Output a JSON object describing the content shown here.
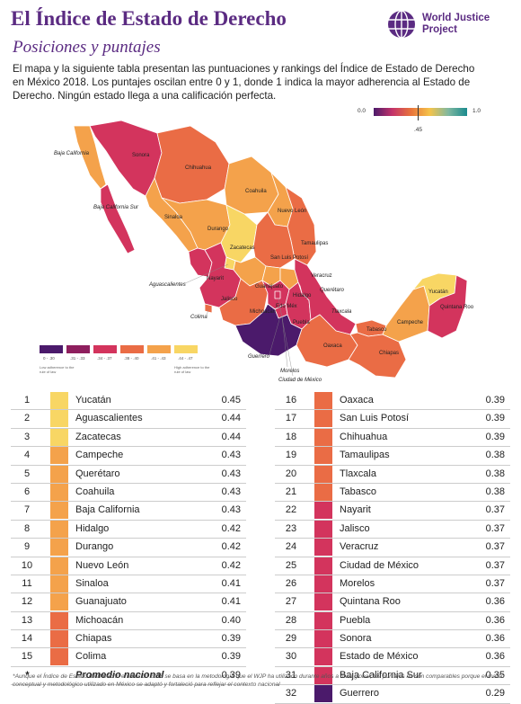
{
  "header": {
    "title": "El Índice de Estado de Derecho",
    "subtitle": "Posiciones y puntajes",
    "intro": "El mapa y la siguiente tabla presentan las puntuaciones y rankings del Índice de Estado de Derecho en México 2018. Los puntajes oscilan entre 0 y 1, donde 1 indica la mayor adherencia al Estado de Derecho. Ningún estado llega a una calificación perfecta.",
    "logo_line1": "World Justice",
    "logo_line2": "Project"
  },
  "scale": {
    "min": "0.0",
    "max": "1.0",
    "marker": ".45"
  },
  "legend": {
    "bins": [
      {
        "label": "0 - .30",
        "color": "#4b1a6b"
      },
      {
        "label": ".31 - .33",
        "color": "#8e1f5e"
      },
      {
        "label": ".34 - .37",
        "color": "#d3345d"
      },
      {
        "label": ".38 - .40",
        "color": "#ea6c45"
      },
      {
        "label": ".41 - .43",
        "color": "#f4a24b"
      },
      {
        "label": ".44 - .47",
        "color": "#f8d664"
      }
    ],
    "low_note": "Low adherence to the rule of law",
    "high_note": "High adherence to the rule of law"
  },
  "map_labels": {
    "baja_california": "Baja California",
    "baja_california_sur": "Baja California Sur",
    "sonora": "Sonora",
    "chihuahua": "Chihuahua",
    "coahuila": "Coahuila",
    "nuevo_leon": "Nuevo León",
    "sinaloa": "Sinaloa",
    "durango": "Durango",
    "tamaulipas": "Tamaulipas",
    "zacatecas": "Zacatecas",
    "san_luis_potosi": "San Luis Potosí",
    "aguascalientes": "Aguascalientes",
    "nayarit": "Nayarit",
    "jalisco": "Jalisco",
    "guanajuato": "Guanajuato",
    "queretaro": "Querétaro",
    "hidalgo": "Hidalgo",
    "veracruz": "Veracruz",
    "colima": "Colima",
    "michoacan": "Michoacán",
    "edomex": "Edo Méx",
    "puebla": "Puebla",
    "tlaxcala": "Tlaxcala",
    "guerrero": "Guerrero",
    "morelos": "Morelos",
    "cdmx": "Ciudad de México",
    "oaxaca": "Oaxaca",
    "tabasco": "Tabasco",
    "chiapas": "Chiapas",
    "campeche": "Campeche",
    "yucatan": "Yucatán",
    "quintana_roo": "Quintana Roo"
  },
  "colors": {
    "c44": "#f8d664",
    "c41": "#f4a24b",
    "c38": "#ea6c45",
    "c34": "#d3345d",
    "c31": "#8e1f5e",
    "c0": "#4b1a6b",
    "accent": "#5b2b82"
  },
  "rankings_left": [
    {
      "rank": "1",
      "state": "Yucatán",
      "score": "0.45",
      "color": "#f8d664"
    },
    {
      "rank": "2",
      "state": "Aguascalientes",
      "score": "0.44",
      "color": "#f8d664"
    },
    {
      "rank": "3",
      "state": "Zacatecas",
      "score": "0.44",
      "color": "#f8d664"
    },
    {
      "rank": "4",
      "state": "Campeche",
      "score": "0.43",
      "color": "#f4a24b"
    },
    {
      "rank": "5",
      "state": "Querétaro",
      "score": "0.43",
      "color": "#f4a24b"
    },
    {
      "rank": "6",
      "state": "Coahuila",
      "score": "0.43",
      "color": "#f4a24b"
    },
    {
      "rank": "7",
      "state": "Baja California",
      "score": "0.43",
      "color": "#f4a24b"
    },
    {
      "rank": "8",
      "state": "Hidalgo",
      "score": "0.42",
      "color": "#f4a24b"
    },
    {
      "rank": "9",
      "state": "Durango",
      "score": "0.42",
      "color": "#f4a24b"
    },
    {
      "rank": "10",
      "state": "Nuevo León",
      "score": "0.42",
      "color": "#f4a24b"
    },
    {
      "rank": "11",
      "state": "Sinaloa",
      "score": "0.41",
      "color": "#f4a24b"
    },
    {
      "rank": "12",
      "state": "Guanajuato",
      "score": "0.41",
      "color": "#f4a24b"
    },
    {
      "rank": "13",
      "state": "Michoacán",
      "score": "0.40",
      "color": "#ea6c45"
    },
    {
      "rank": "14",
      "state": "Chiapas",
      "score": "0.39",
      "color": "#ea6c45"
    },
    {
      "rank": "15",
      "state": "Colima",
      "score": "0.39",
      "color": "#ea6c45"
    },
    {
      "rank": "*",
      "state": "Promedio nacional",
      "score": "0.39",
      "color": ""
    }
  ],
  "rankings_right": [
    {
      "rank": "16",
      "state": "Oaxaca",
      "score": "0.39",
      "color": "#ea6c45"
    },
    {
      "rank": "17",
      "state": "San Luis Potosí",
      "score": "0.39",
      "color": "#ea6c45"
    },
    {
      "rank": "18",
      "state": "Chihuahua",
      "score": "0.39",
      "color": "#ea6c45"
    },
    {
      "rank": "19",
      "state": "Tamaulipas",
      "score": "0.38",
      "color": "#ea6c45"
    },
    {
      "rank": "20",
      "state": "Tlaxcala",
      "score": "0.38",
      "color": "#ea6c45"
    },
    {
      "rank": "21",
      "state": "Tabasco",
      "score": "0.38",
      "color": "#ea6c45"
    },
    {
      "rank": "22",
      "state": "Nayarit",
      "score": "0.37",
      "color": "#d3345d"
    },
    {
      "rank": "23",
      "state": "Jalisco",
      "score": "0.37",
      "color": "#d3345d"
    },
    {
      "rank": "24",
      "state": "Veracruz",
      "score": "0.37",
      "color": "#d3345d"
    },
    {
      "rank": "25",
      "state": "Ciudad de México",
      "score": "0.37",
      "color": "#d3345d"
    },
    {
      "rank": "26",
      "state": "Morelos",
      "score": "0.37",
      "color": "#d3345d"
    },
    {
      "rank": "27",
      "state": "Quintana Roo",
      "score": "0.36",
      "color": "#d3345d"
    },
    {
      "rank": "28",
      "state": "Puebla",
      "score": "0.36",
      "color": "#d3345d"
    },
    {
      "rank": "29",
      "state": "Sonora",
      "score": "0.36",
      "color": "#d3345d"
    },
    {
      "rank": "30",
      "state": "Estado de México",
      "score": "0.36",
      "color": "#d3345d"
    },
    {
      "rank": "31",
      "state": "Baja California Sur",
      "score": "0.35",
      "color": "#d3345d"
    },
    {
      "rank": "32",
      "state": "Guerrero",
      "score": "0.29",
      "color": "#4b1a6b"
    }
  ],
  "footnote": "*Aunque el Índice de Estado de Derecho en México 2018 se basa en la metodología que el WJP ha utilizado durante años a nivel global, los puntajes no son comparables porque el marco conceptual y metodológico utilizado en México se adaptó y fortaleció para reflejar el contexto nacional"
}
